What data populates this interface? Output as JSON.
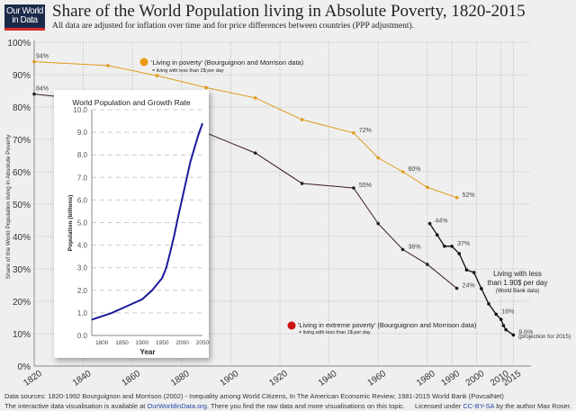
{
  "logo": {
    "line1": "Our World",
    "line2": "in Data"
  },
  "header": {
    "title": "Share of the World Population living in Absolute Poverty, 1820-2015",
    "subtitle": "All data are adjusted for inflation over time and for price differences between countries (PPP adjustment)."
  },
  "footer": {
    "sources": "Data sources: 1820-1992 Bourguignon and Morrison (2002) - Inequality among World Citizens, In The American Economic Review; 1981-2015 World Bank (PovcalNet)",
    "interactive_pre": "The interactive data visualisation is available at ",
    "interactive_link": "OurWorldinData.org",
    "interactive_post": ". There you find the raw data and more visualisations on this topic.",
    "license_pre": "Licensed under ",
    "license_link": "CC-BY-SA",
    "license_post": " by the author Max Roser."
  },
  "chart_data": [
    {
      "type": "line",
      "title": "Share of the World Population living in Absolute Poverty, 1820-2015",
      "xlabel": "",
      "ylabel": "Share of the World Population living in Absolute Poverty",
      "xlim": [
        1820,
        2020
      ],
      "ylim": [
        0,
        100
      ],
      "x_ticks": [
        1820,
        1840,
        1860,
        1880,
        1900,
        1920,
        1940,
        1960,
        1980,
        1990,
        2000,
        2010,
        2015
      ],
      "y_ticks": [
        "0%",
        "10%",
        "20%",
        "30%",
        "40%",
        "50%",
        "60%",
        "70%",
        "80%",
        "90%",
        "100%"
      ],
      "grid": true,
      "colors": {
        "poverty": "#e09a1a",
        "extreme": "#3a1a1a",
        "worldbank": "#111111",
        "extreme_marker": "#cc1111"
      },
      "series": [
        {
          "name": "'Living in poverty' (Bourguignon and Morrison data)",
          "note": "= living with less than 2$ per day",
          "x": [
            1820,
            1850,
            1870,
            1890,
            1910,
            1929,
            1950,
            1960,
            1970,
            1980,
            1992
          ],
          "values": [
            94,
            92.8,
            89.7,
            86,
            82.8,
            76.1,
            72,
            64.3,
            60,
            55.2,
            52
          ],
          "labels": {
            "1820": "94%",
            "1950": "72%",
            "1970": "60%",
            "1992": "52%"
          }
        },
        {
          "name": "'Living in extreme poverty' (Bourguignon and Morrison data)",
          "note": "= living with less than 1$ per day",
          "x": [
            1820,
            1850,
            1870,
            1890,
            1910,
            1929,
            1950,
            1960,
            1970,
            1980,
            1992
          ],
          "values": [
            84,
            81.6,
            79.5,
            72,
            65.8,
            56.4,
            55,
            44,
            36,
            31.4,
            24
          ],
          "labels": {
            "1820": "84%",
            "1950": "55%",
            "1970": "36%",
            "1992": "24%"
          }
        },
        {
          "name": "Living with less than 1.90$ per day",
          "note": "(World Bank data)",
          "x": [
            1981,
            1984,
            1987,
            1990,
            1993,
            1996,
            1999,
            2002,
            2005,
            2008,
            2010,
            2011,
            2012,
            2015
          ],
          "values": [
            44,
            40.5,
            37,
            37,
            34.7,
            29.7,
            28.9,
            23.9,
            19.2,
            16,
            14.4,
            12.5,
            11.2,
            9.6
          ],
          "labels": {
            "1981": "44%",
            "1990": "37%",
            "2008": "16%",
            "2015": "9.6%"
          },
          "projection_note": "(projection for 2015)"
        }
      ]
    },
    {
      "type": "line",
      "title": "World Population and Growth Rate",
      "xlabel": "Year",
      "ylabel": "Population (billions)",
      "xlim": [
        1775,
        2050
      ],
      "ylim": [
        0,
        10
      ],
      "x_ticks": [
        "1800",
        "1850",
        "1900",
        "1950",
        "2000",
        "2050"
      ],
      "y_ticks": [
        "0.0",
        "1.0",
        "2.0",
        "3.0",
        "4.0",
        "5.0",
        "6.0",
        "7.0",
        "8.0",
        "9.0",
        "10.0"
      ],
      "grid": true,
      "colors": {
        "line": "#1a1a9a"
      },
      "series": [
        {
          "name": "World population",
          "x": [
            1775,
            1800,
            1825,
            1850,
            1875,
            1900,
            1925,
            1950,
            1960,
            1970,
            1980,
            1990,
            2000,
            2010,
            2020,
            2030,
            2040,
            2050
          ],
          "values": [
            0.7,
            0.85,
            1.0,
            1.2,
            1.4,
            1.6,
            2.0,
            2.55,
            3.0,
            3.7,
            4.45,
            5.3,
            6.1,
            6.9,
            7.7,
            8.3,
            8.9,
            9.4
          ]
        }
      ]
    }
  ]
}
